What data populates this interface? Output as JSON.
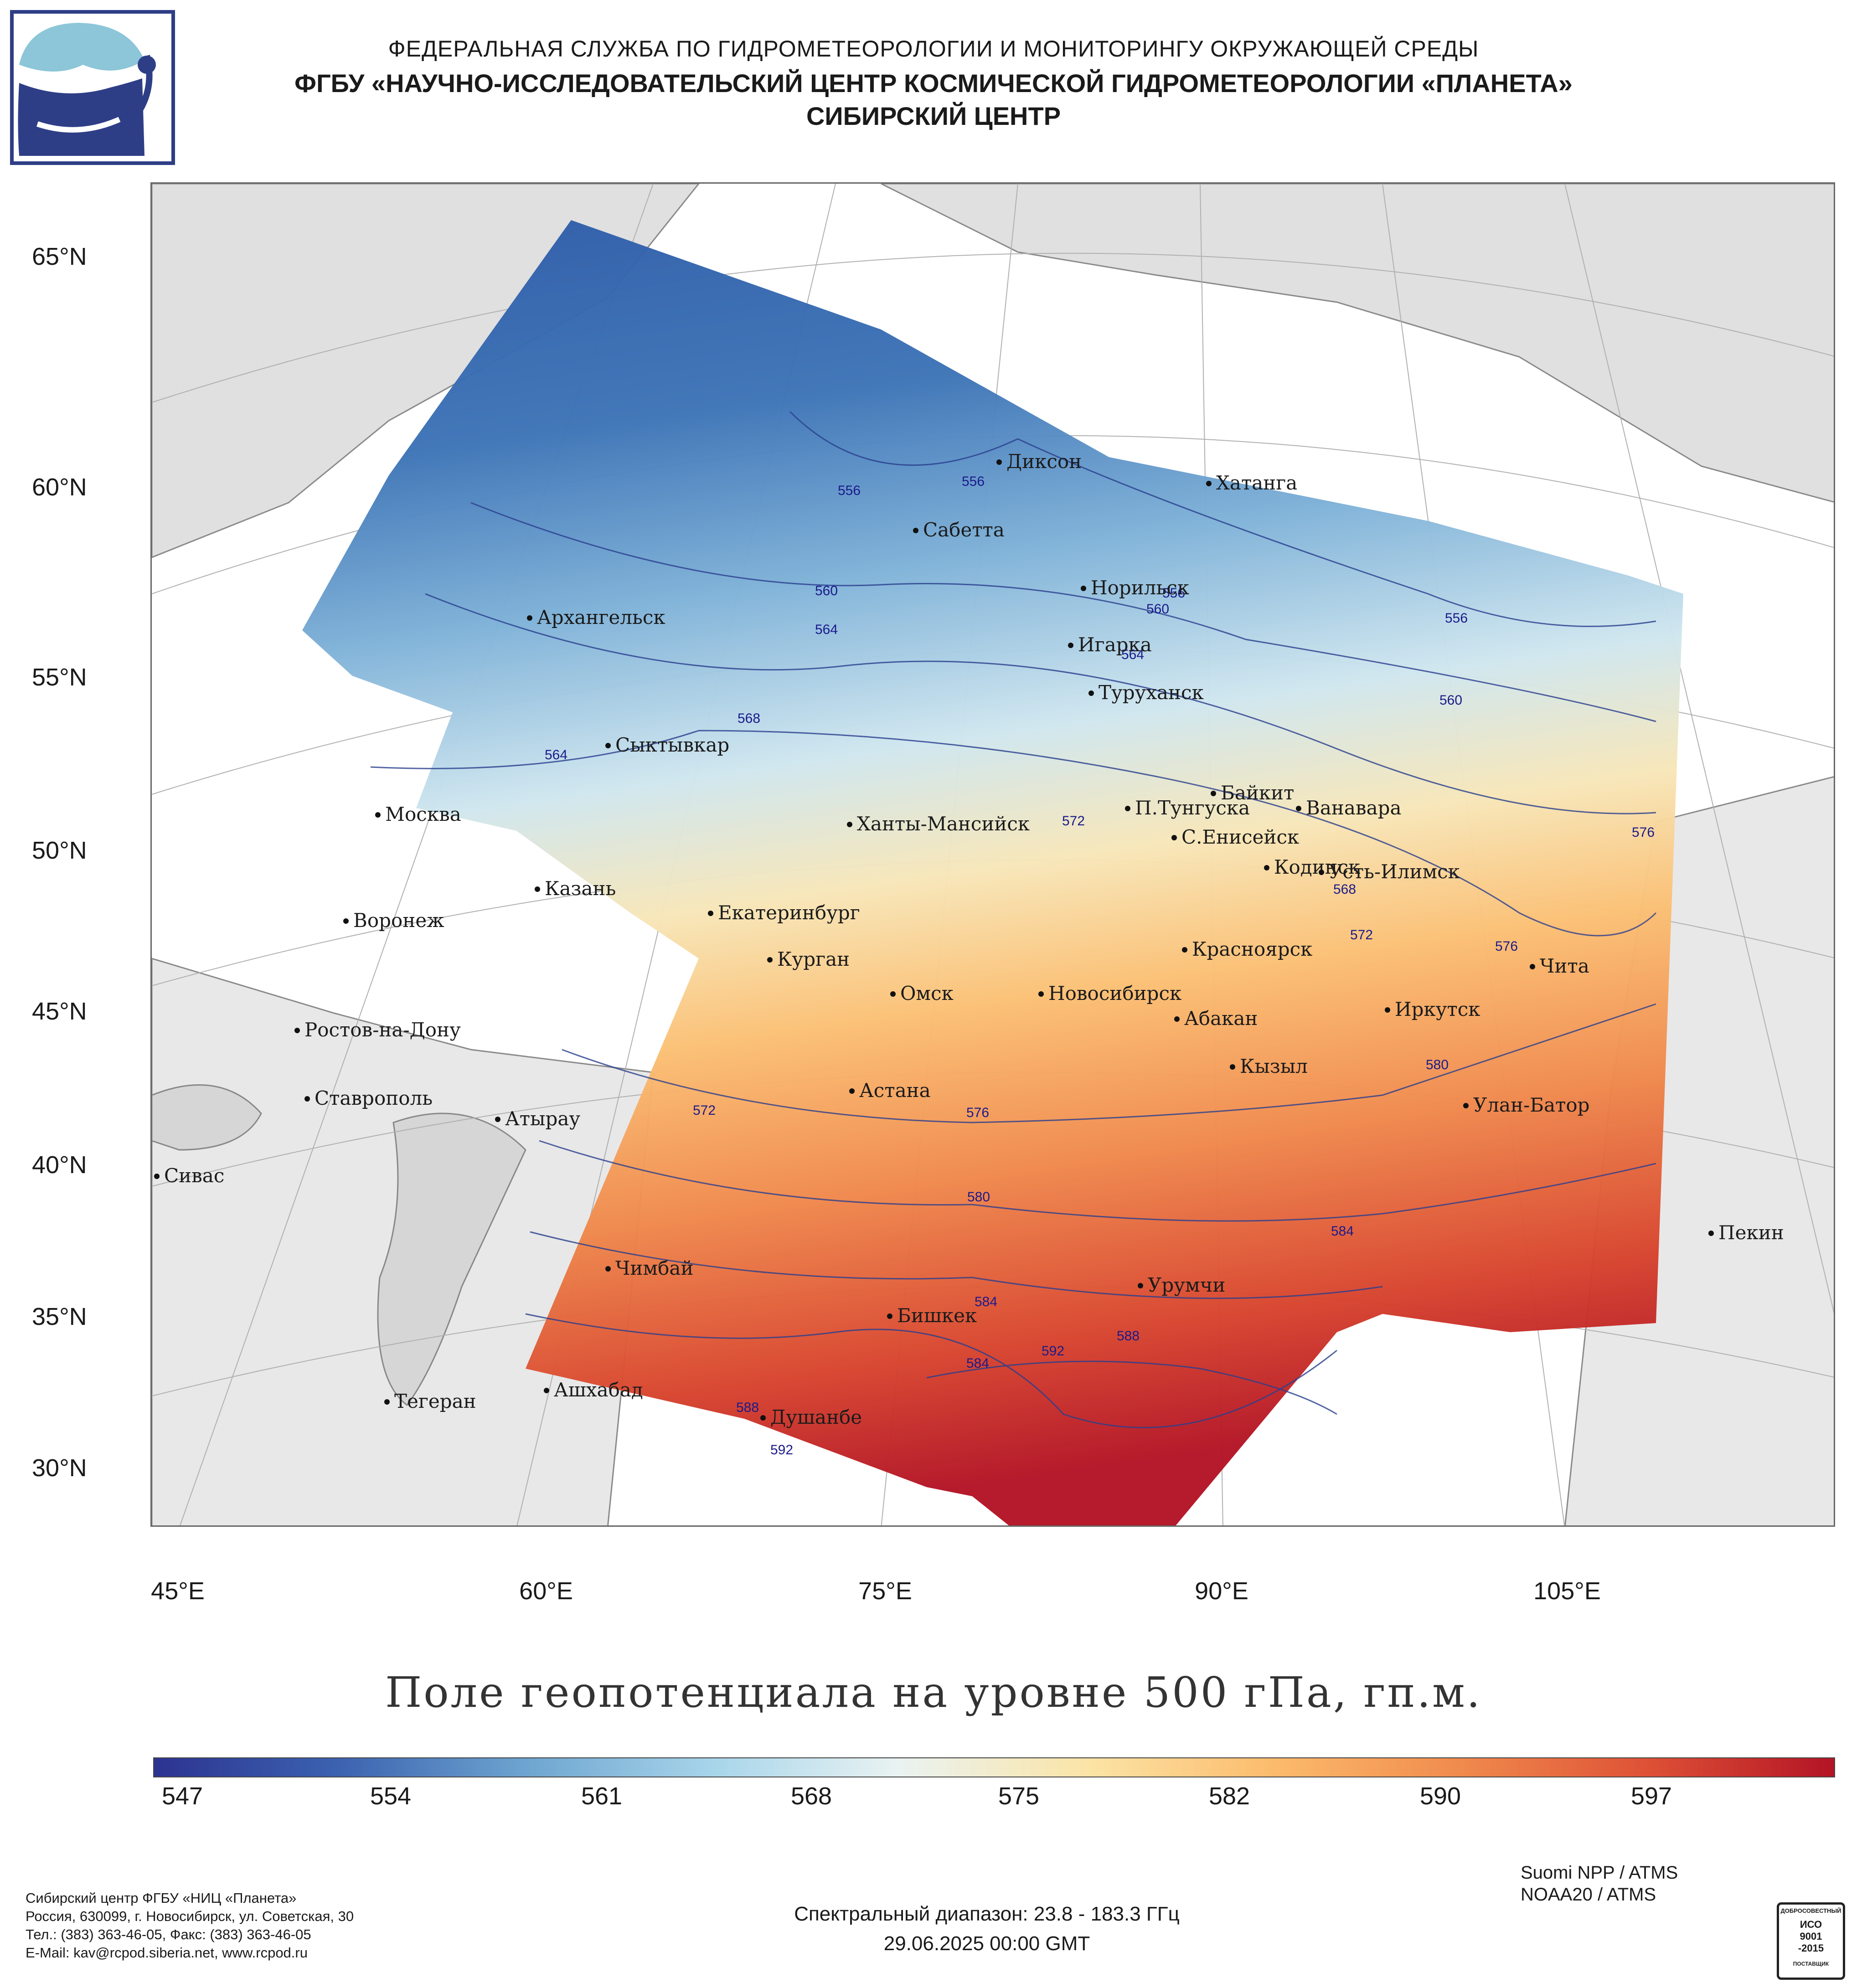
{
  "header": {
    "line1": "ФЕДЕРАЛЬНАЯ СЛУЖБА ПО ГИДРОМЕТЕОРОЛОГИИ И МОНИТОРИНГУ ОКРУЖАЮЩЕЙ СРЕДЫ",
    "line2": "ФГБУ «НАУЧНО-ИССЛЕДОВАТЕЛЬСКИЙ ЦЕНТР КОСМИЧЕСКОЙ ГИДРОМЕТЕОРОЛОГИИ «ПЛАНЕТА»",
    "line3": "СИБИРСКИЙ ЦЕНТР"
  },
  "map": {
    "lat_labels": [
      "65°N",
      "60°N",
      "55°N",
      "50°N",
      "45°N",
      "40°N",
      "35°N",
      "30°N"
    ],
    "lon_labels": [
      "45°E",
      "60°E",
      "75°E",
      "90°E",
      "105°E"
    ],
    "cities": [
      "Диксон",
      "Хатанга",
      "Сабетта",
      "Норильск",
      "Архангельск",
      "Игарка",
      "Туруханск",
      "Сыктывкар",
      "Байкит",
      "Москва",
      "П.Тунгуска",
      "Ванавара",
      "Ханты-Мансийск",
      "С.Енисейск",
      "Казань",
      "Кодинск",
      "Усть-Илимск",
      "Воронеж",
      "Екатеринбург",
      "Красноярск",
      "Курган",
      "Чита",
      "Омск",
      "Новосибирск",
      "Ростов-на-Дону",
      "Абакан",
      "Иркутск",
      "Кызыл",
      "Ставрополь",
      "Астана",
      "Улан-Батор",
      "Атырау",
      "Сивас",
      "Пекин",
      "Чимбай",
      "Урумчи",
      "Бишкек",
      "Ашхабад",
      "Тегеран",
      "Душанбе"
    ],
    "contour_labels": [
      "556",
      "556",
      "560",
      "564",
      "556",
      "560",
      "564",
      "568",
      "564",
      "560",
      "556",
      "572",
      "576",
      "568",
      "572",
      "576",
      "580",
      "572",
      "576",
      "580",
      "584",
      "584",
      "588",
      "592",
      "584",
      "588",
      "592"
    ]
  },
  "title": "Поле геопотенциала на уровне 500 гПа, гп.м.",
  "colorbar": {
    "ticks": [
      "547",
      "554",
      "561",
      "568",
      "575",
      "582",
      "590",
      "597"
    ],
    "colors": [
      "#2c3391",
      "#3c63b0",
      "#6ea5d0",
      "#a8d5ea",
      "#eaf3f2",
      "#fbe4a6",
      "#fcbb6c",
      "#f08a4d",
      "#de5136",
      "#b31425"
    ]
  },
  "footer": {
    "org_lines": [
      "Сибирский центр ФГБУ «НИЦ «Планета»",
      "Россия, 630099, г. Новосибирск, ул. Советская, 30",
      "Тел.: (383) 363-46-05, Факс: (383) 363-46-05",
      "E-Mail: kav@rcpod.siberia.net, www.rcpod.ru"
    ],
    "satellites": [
      "Suomi NPP / ATMS",
      "NOAA20 / ATMS"
    ],
    "spectral": "Спектральный диапазон: 23.8 - 183.3 ГГц",
    "date": "29.06.2025 00:00 GMT",
    "iso": {
      "top": "ДОБРОСОВЕСТНЫЙ",
      "main1": "ИСО",
      "main2": "9001",
      "main3": "-2015",
      "bottom": "ПОСТАВЩИК"
    }
  }
}
